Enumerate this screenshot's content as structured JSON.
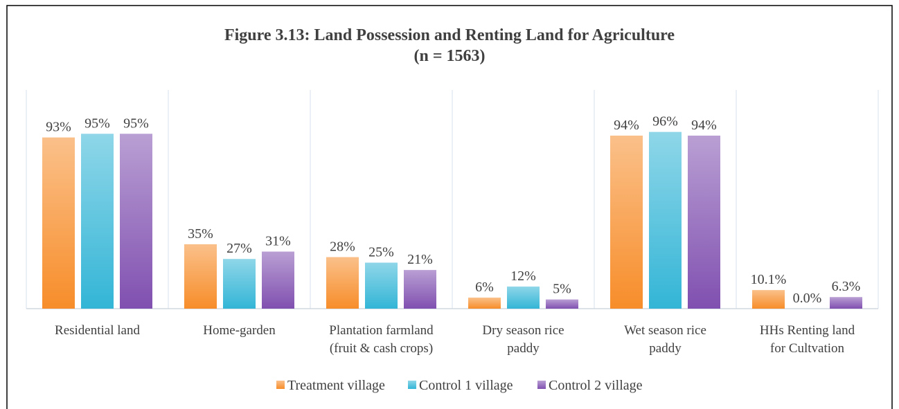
{
  "chart_data": {
    "type": "bar",
    "title": "Figure 3.13: Land Possession and Renting Land for Agriculture\n(n = 1563)",
    "categories": [
      "Residential land",
      "Home-garden",
      "Plantation farmland\n(fruit & cash crops)",
      "Dry season rice\npaddy",
      "Wet season rice\npaddy",
      "HHs Renting land\nfor Cultvation"
    ],
    "series": [
      {
        "name": "Treatment village",
        "color": "#f78d2a",
        "values": [
          93,
          35,
          28,
          6,
          94,
          10.1
        ],
        "value_labels": [
          "93%",
          "35%",
          "28%",
          "6%",
          "94%",
          "10.1%"
        ]
      },
      {
        "name": "Control 1 village",
        "color": "#33b5d6",
        "values": [
          95,
          27,
          25,
          12,
          96,
          0
        ],
        "value_labels": [
          "95%",
          "27%",
          "25%",
          "12%",
          "96%",
          "0.0%"
        ]
      },
      {
        "name": "Control 2 village",
        "color": "#8050b0",
        "values": [
          95,
          31,
          21,
          5,
          94,
          6.3
        ],
        "value_labels": [
          "95%",
          "31%",
          "21%",
          "5%",
          "94%",
          "6.3%"
        ]
      }
    ],
    "ylim": [
      0,
      100
    ],
    "legend": "bottom"
  }
}
